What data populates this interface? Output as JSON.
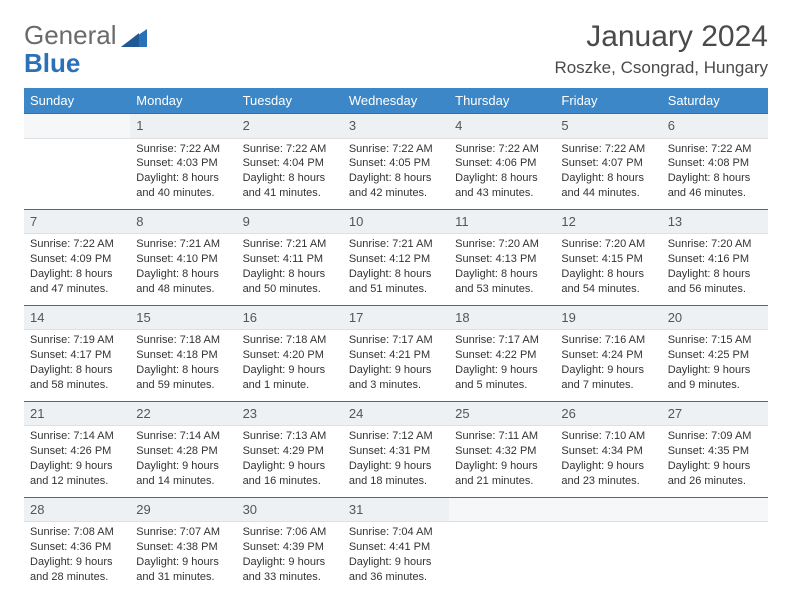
{
  "logo": {
    "text_a": "General",
    "text_b": "Blue"
  },
  "title": "January 2024",
  "location": "Roszke, Csongrad, Hungary",
  "colors": {
    "header_bg": "#3c87c7",
    "accent": "#2a71b8",
    "daynum_bg": "#eef1f3",
    "text": "#333333",
    "muted": "#6a6a6a"
  },
  "weekdays": [
    "Sunday",
    "Monday",
    "Tuesday",
    "Wednesday",
    "Thursday",
    "Friday",
    "Saturday"
  ],
  "weeks": [
    [
      {
        "day": "",
        "lines": []
      },
      {
        "day": "1",
        "lines": [
          "Sunrise: 7:22 AM",
          "Sunset: 4:03 PM",
          "Daylight: 8 hours",
          "and 40 minutes."
        ]
      },
      {
        "day": "2",
        "lines": [
          "Sunrise: 7:22 AM",
          "Sunset: 4:04 PM",
          "Daylight: 8 hours",
          "and 41 minutes."
        ]
      },
      {
        "day": "3",
        "lines": [
          "Sunrise: 7:22 AM",
          "Sunset: 4:05 PM",
          "Daylight: 8 hours",
          "and 42 minutes."
        ]
      },
      {
        "day": "4",
        "lines": [
          "Sunrise: 7:22 AM",
          "Sunset: 4:06 PM",
          "Daylight: 8 hours",
          "and 43 minutes."
        ]
      },
      {
        "day": "5",
        "lines": [
          "Sunrise: 7:22 AM",
          "Sunset: 4:07 PM",
          "Daylight: 8 hours",
          "and 44 minutes."
        ]
      },
      {
        "day": "6",
        "lines": [
          "Sunrise: 7:22 AM",
          "Sunset: 4:08 PM",
          "Daylight: 8 hours",
          "and 46 minutes."
        ]
      }
    ],
    [
      {
        "day": "7",
        "lines": [
          "Sunrise: 7:22 AM",
          "Sunset: 4:09 PM",
          "Daylight: 8 hours",
          "and 47 minutes."
        ]
      },
      {
        "day": "8",
        "lines": [
          "Sunrise: 7:21 AM",
          "Sunset: 4:10 PM",
          "Daylight: 8 hours",
          "and 48 minutes."
        ]
      },
      {
        "day": "9",
        "lines": [
          "Sunrise: 7:21 AM",
          "Sunset: 4:11 PM",
          "Daylight: 8 hours",
          "and 50 minutes."
        ]
      },
      {
        "day": "10",
        "lines": [
          "Sunrise: 7:21 AM",
          "Sunset: 4:12 PM",
          "Daylight: 8 hours",
          "and 51 minutes."
        ]
      },
      {
        "day": "11",
        "lines": [
          "Sunrise: 7:20 AM",
          "Sunset: 4:13 PM",
          "Daylight: 8 hours",
          "and 53 minutes."
        ]
      },
      {
        "day": "12",
        "lines": [
          "Sunrise: 7:20 AM",
          "Sunset: 4:15 PM",
          "Daylight: 8 hours",
          "and 54 minutes."
        ]
      },
      {
        "day": "13",
        "lines": [
          "Sunrise: 7:20 AM",
          "Sunset: 4:16 PM",
          "Daylight: 8 hours",
          "and 56 minutes."
        ]
      }
    ],
    [
      {
        "day": "14",
        "lines": [
          "Sunrise: 7:19 AM",
          "Sunset: 4:17 PM",
          "Daylight: 8 hours",
          "and 58 minutes."
        ]
      },
      {
        "day": "15",
        "lines": [
          "Sunrise: 7:18 AM",
          "Sunset: 4:18 PM",
          "Daylight: 8 hours",
          "and 59 minutes."
        ]
      },
      {
        "day": "16",
        "lines": [
          "Sunrise: 7:18 AM",
          "Sunset: 4:20 PM",
          "Daylight: 9 hours",
          "and 1 minute."
        ]
      },
      {
        "day": "17",
        "lines": [
          "Sunrise: 7:17 AM",
          "Sunset: 4:21 PM",
          "Daylight: 9 hours",
          "and 3 minutes."
        ]
      },
      {
        "day": "18",
        "lines": [
          "Sunrise: 7:17 AM",
          "Sunset: 4:22 PM",
          "Daylight: 9 hours",
          "and 5 minutes."
        ]
      },
      {
        "day": "19",
        "lines": [
          "Sunrise: 7:16 AM",
          "Sunset: 4:24 PM",
          "Daylight: 9 hours",
          "and 7 minutes."
        ]
      },
      {
        "day": "20",
        "lines": [
          "Sunrise: 7:15 AM",
          "Sunset: 4:25 PM",
          "Daylight: 9 hours",
          "and 9 minutes."
        ]
      }
    ],
    [
      {
        "day": "21",
        "lines": [
          "Sunrise: 7:14 AM",
          "Sunset: 4:26 PM",
          "Daylight: 9 hours",
          "and 12 minutes."
        ]
      },
      {
        "day": "22",
        "lines": [
          "Sunrise: 7:14 AM",
          "Sunset: 4:28 PM",
          "Daylight: 9 hours",
          "and 14 minutes."
        ]
      },
      {
        "day": "23",
        "lines": [
          "Sunrise: 7:13 AM",
          "Sunset: 4:29 PM",
          "Daylight: 9 hours",
          "and 16 minutes."
        ]
      },
      {
        "day": "24",
        "lines": [
          "Sunrise: 7:12 AM",
          "Sunset: 4:31 PM",
          "Daylight: 9 hours",
          "and 18 minutes."
        ]
      },
      {
        "day": "25",
        "lines": [
          "Sunrise: 7:11 AM",
          "Sunset: 4:32 PM",
          "Daylight: 9 hours",
          "and 21 minutes."
        ]
      },
      {
        "day": "26",
        "lines": [
          "Sunrise: 7:10 AM",
          "Sunset: 4:34 PM",
          "Daylight: 9 hours",
          "and 23 minutes."
        ]
      },
      {
        "day": "27",
        "lines": [
          "Sunrise: 7:09 AM",
          "Sunset: 4:35 PM",
          "Daylight: 9 hours",
          "and 26 minutes."
        ]
      }
    ],
    [
      {
        "day": "28",
        "lines": [
          "Sunrise: 7:08 AM",
          "Sunset: 4:36 PM",
          "Daylight: 9 hours",
          "and 28 minutes."
        ]
      },
      {
        "day": "29",
        "lines": [
          "Sunrise: 7:07 AM",
          "Sunset: 4:38 PM",
          "Daylight: 9 hours",
          "and 31 minutes."
        ]
      },
      {
        "day": "30",
        "lines": [
          "Sunrise: 7:06 AM",
          "Sunset: 4:39 PM",
          "Daylight: 9 hours",
          "and 33 minutes."
        ]
      },
      {
        "day": "31",
        "lines": [
          "Sunrise: 7:04 AM",
          "Sunset: 4:41 PM",
          "Daylight: 9 hours",
          "and 36 minutes."
        ]
      },
      {
        "day": "",
        "lines": []
      },
      {
        "day": "",
        "lines": []
      },
      {
        "day": "",
        "lines": []
      }
    ]
  ]
}
